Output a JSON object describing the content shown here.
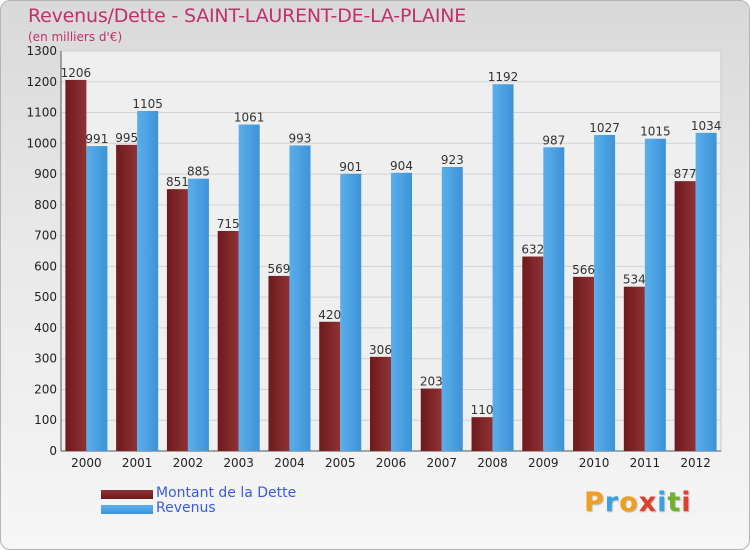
{
  "header": {
    "title": "Revenus/Dette - SAINT-LAURENT-DE-LA-PLAINE",
    "subtitle": "(en milliers d'€)"
  },
  "legend": {
    "debt_label": "Montant de la Dette",
    "revenue_label": "Revenus"
  },
  "logo": {
    "letters": [
      "P",
      "r",
      "o",
      "x",
      "i",
      "t",
      "i"
    ],
    "colors": [
      "#f0a020",
      "#3aa0e0",
      "#f0a020",
      "#e0402a",
      "#3aa0e0",
      "#70b030",
      "#e0402a"
    ]
  },
  "colors": {
    "debt": "#6e1a1c",
    "debt_light": "#8e3235",
    "revenue": "#3d93d8",
    "revenue_light": "#5aaeea",
    "title": "#c0306a",
    "legend_text": "#3a5adf"
  },
  "chart_data": {
    "type": "bar",
    "title": "Revenus/Dette - SAINT-LAURENT-DE-LA-PLAINE",
    "ylabel": "(en milliers d'€)",
    "xlabel": "",
    "ylim": [
      0,
      1300
    ],
    "yticks": [
      0,
      100,
      200,
      300,
      400,
      500,
      600,
      700,
      800,
      900,
      1000,
      1100,
      1200,
      1300
    ],
    "grid": true,
    "legend_position": "bottom-left",
    "categories": [
      "2000",
      "2001",
      "2002",
      "2003",
      "2004",
      "2005",
      "2006",
      "2007",
      "2008",
      "2009",
      "2010",
      "2011",
      "2012"
    ],
    "series": [
      {
        "name": "Montant de la Dette",
        "values": [
          1206,
          995,
          851,
          715,
          569,
          420,
          306,
          203,
          110,
          632,
          566,
          534,
          877
        ]
      },
      {
        "name": "Revenus",
        "values": [
          991,
          1105,
          885,
          1061,
          993,
          901,
          904,
          923,
          1192,
          987,
          1027,
          1015,
          1034
        ]
      }
    ]
  }
}
